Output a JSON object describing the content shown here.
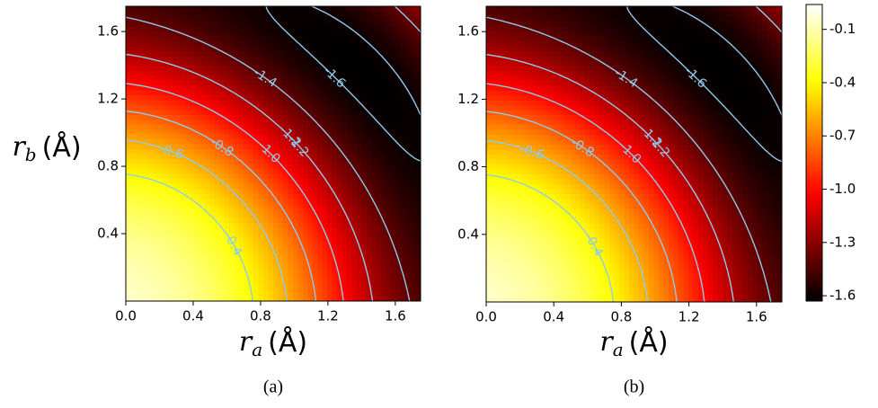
{
  "chart_data": [
    {
      "type": "contour",
      "caption": "(a)",
      "xlabel": {
        "symbol": "r",
        "subscript": "a",
        "unit": "(Å)"
      },
      "ylabel": {
        "symbol": "r",
        "subscript": "b",
        "unit": "(Å)"
      },
      "xlim": [
        0,
        1.75
      ],
      "ylim": [
        0,
        1.75
      ],
      "xticks": [
        {
          "value": 0,
          "label": "0.0"
        },
        0.4,
        0.8,
        1.2,
        1.6
      ],
      "yticks": [
        0.4,
        0.8,
        1.2,
        1.6
      ],
      "levels": [
        -1.6,
        -1.4,
        -1.2,
        {
          "value": -1,
          "label": "-1.0"
        },
        -0.8,
        -0.6,
        -0.4
      ],
      "contour_color": "#8ecbea"
    },
    {
      "type": "contour",
      "caption": "(b)",
      "xlabel": {
        "symbol": "r",
        "subscript": "a",
        "unit": "(Å)"
      },
      "xlim": [
        0,
        1.75
      ],
      "ylim": [
        0,
        1.75
      ],
      "xticks": [
        {
          "value": 0,
          "label": "0.0"
        },
        0.4,
        0.8,
        1.2,
        1.6
      ],
      "yticks": [
        0.4,
        0.8,
        1.2,
        1.6
      ],
      "levels": [
        -1.6,
        -1.4,
        -1.2,
        {
          "value": -1,
          "label": "-1.0"
        },
        -0.8,
        -0.6,
        -0.4
      ],
      "contour_color": "#8ecbea"
    }
  ],
  "colorbar": {
    "clim": [
      -1.63,
      0.04
    ],
    "colormap": "hot",
    "ticks": [
      -0.1,
      -0.4,
      -0.7,
      {
        "value": -1,
        "label": "-1.0"
      },
      -1.3,
      -1.6
    ]
  }
}
